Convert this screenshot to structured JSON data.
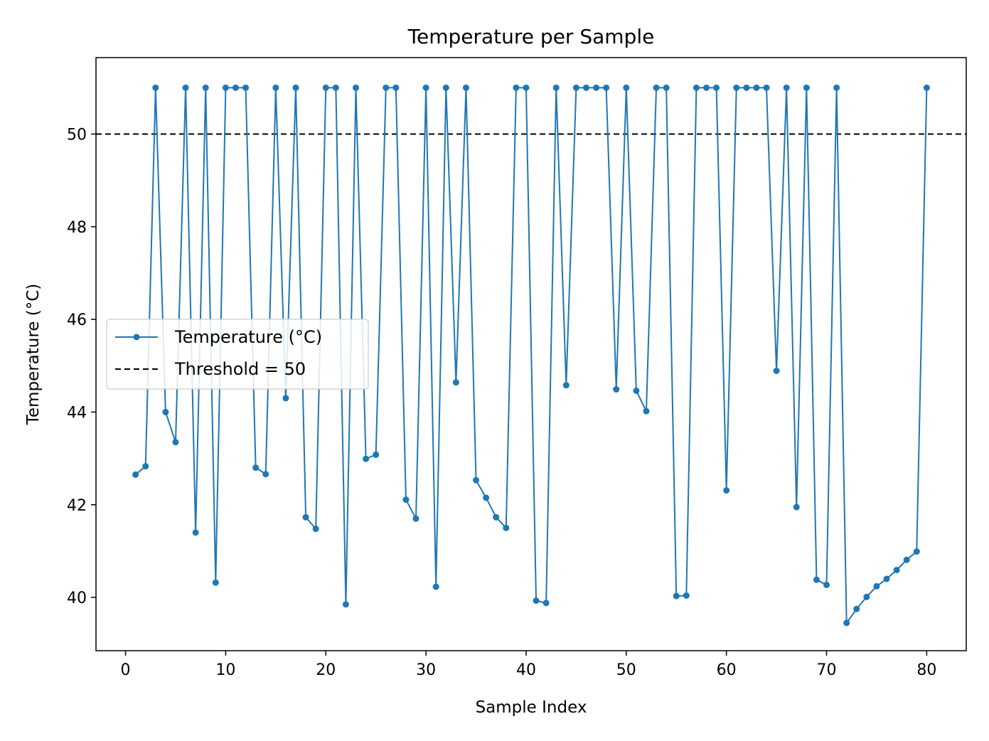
{
  "chart_data": {
    "type": "line",
    "title": "Temperature per Sample",
    "xlabel": "Sample Index",
    "ylabel": "Temperature (°C)",
    "xlim": [
      -2.95,
      83.95
    ],
    "ylim": [
      38.85,
      51.65
    ],
    "xticks": [
      0,
      10,
      20,
      30,
      40,
      50,
      60,
      70,
      80
    ],
    "yticks": [
      40,
      42,
      44,
      46,
      48,
      50
    ],
    "grid": false,
    "legend_position": "center-left",
    "series": [
      {
        "name": "Temperature (°C)",
        "color": "#1f77b4",
        "x": [
          1,
          2,
          3,
          4,
          5,
          6,
          7,
          8,
          9,
          10,
          11,
          12,
          13,
          14,
          15,
          16,
          17,
          18,
          19,
          20,
          21,
          22,
          23,
          24,
          25,
          26,
          27,
          28,
          29,
          30,
          31,
          32,
          33,
          34,
          35,
          36,
          37,
          38,
          39,
          40,
          41,
          42,
          43,
          44,
          45,
          46,
          47,
          48,
          49,
          50,
          51,
          52,
          53,
          54,
          55,
          56,
          57,
          58,
          59,
          60,
          61,
          62,
          63,
          64,
          65,
          66,
          67,
          68,
          69,
          70,
          71,
          72,
          73,
          74,
          75,
          76,
          77,
          78,
          79,
          80
        ],
        "values": [
          42.65,
          42.83,
          51.0,
          44.0,
          43.35,
          51.0,
          41.4,
          51.0,
          40.32,
          51.0,
          51.0,
          51.0,
          42.8,
          42.66,
          51.0,
          44.3,
          51.0,
          41.73,
          41.48,
          51.0,
          51.0,
          39.85,
          51.0,
          42.99,
          43.08,
          51.0,
          51.0,
          42.11,
          41.7,
          51.0,
          40.23,
          51.0,
          44.64,
          51.0,
          42.53,
          42.15,
          41.73,
          41.5,
          51.0,
          51.0,
          39.93,
          39.88,
          51.0,
          44.58,
          51.0,
          51.0,
          51.0,
          51.0,
          44.49,
          51.0,
          44.46,
          44.02,
          51.0,
          51.0,
          40.03,
          40.04,
          51.0,
          51.0,
          51.0,
          42.31,
          51.0,
          51.0,
          51.0,
          51.0,
          44.89,
          51.0,
          41.95,
          51.0,
          40.38,
          40.27,
          51.0,
          39.45,
          39.75,
          40.01,
          40.24,
          40.4,
          40.59,
          40.81,
          40.99,
          51.0
        ]
      }
    ],
    "reference_lines": [
      {
        "name": "Threshold = 50",
        "y": 50,
        "color": "#000000",
        "style": "dashed"
      }
    ]
  }
}
